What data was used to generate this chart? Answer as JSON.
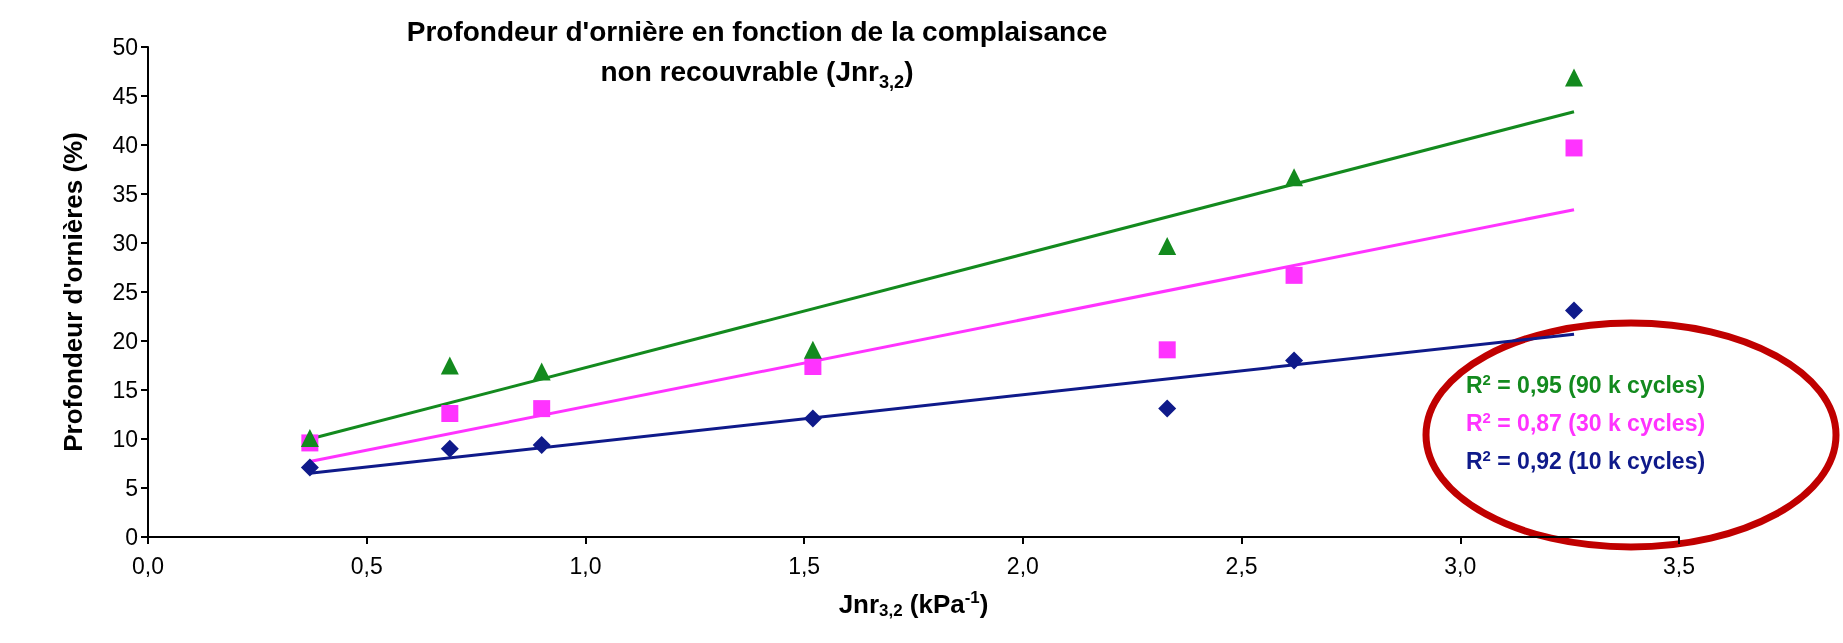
{
  "chart_data": {
    "type": "scatter",
    "title": "Profondeur d'ornière en fonction de la complaisance\nnon recouvrable (Jnr$_{3,2}$)",
    "xlabel": "Jnr$_{3,2}$ (kPa$^{-1}$)",
    "ylabel": "Profondeur d'ornières (%)",
    "xlim": [
      0,
      3.5
    ],
    "xticks": [
      {
        "value": 0,
        "label": "0,0"
      },
      {
        "value": 0.5,
        "label": "0,5"
      },
      {
        "value": 1,
        "label": "1,0"
      },
      {
        "value": 1.5,
        "label": "1,5"
      },
      {
        "value": 2,
        "label": "2,0"
      },
      {
        "value": 2.5,
        "label": "2,5"
      },
      {
        "value": 3,
        "label": "3,0"
      },
      {
        "value": 3.5,
        "label": "3,5"
      }
    ],
    "ylim": [
      0,
      50
    ],
    "yticks": [
      0,
      5,
      10,
      15,
      20,
      25,
      30,
      35,
      40,
      45,
      50
    ],
    "grid": false,
    "series": [
      {
        "marker": "triangle",
        "color": "#138a1e",
        "x": [
          0.37,
          0.69,
          0.9,
          1.52,
          2.33,
          2.62,
          3.26
        ],
        "values": [
          10.1,
          17.5,
          16.9,
          19.1,
          29.7,
          36.7,
          46.9
        ]
      },
      {
        "marker": "square",
        "color": "#ff33ff",
        "x": [
          0.37,
          0.69,
          0.9,
          1.52,
          2.33,
          2.62,
          3.26
        ],
        "values": [
          9.6,
          12.6,
          13.1,
          17.4,
          19.1,
          26.7,
          39.7
        ]
      },
      {
        "marker": "diamond",
        "color": "#0f1a8a",
        "x": [
          0.37,
          0.69,
          0.9,
          1.52,
          2.33,
          2.62,
          3.26
        ],
        "values": [
          7.1,
          9.0,
          9.4,
          12.1,
          13.1,
          18.0,
          23.1
        ]
      },
      {
        "type": "line",
        "marker": "none",
        "color": "#138a1e",
        "x": [
          0.37,
          3.26
        ],
        "values": [
          10,
          43.4
        ]
      },
      {
        "type": "line",
        "marker": "none",
        "color": "#ff33ff",
        "x": [
          0.37,
          3.26
        ],
        "values": [
          7.7,
          33.4
        ]
      },
      {
        "type": "line",
        "marker": "none",
        "color": "#0f1a8a",
        "x": [
          0.37,
          3.26
        ],
        "values": [
          6.5,
          20.7
        ]
      }
    ],
    "annotations": [
      "R$^{2}$ = 0,95 (90 k cycles)",
      "R$^{2}$ = 0,87 (30 k cycles)",
      "R$^{2}$ = 0,92 (10 k cycles)"
    ]
  }
}
